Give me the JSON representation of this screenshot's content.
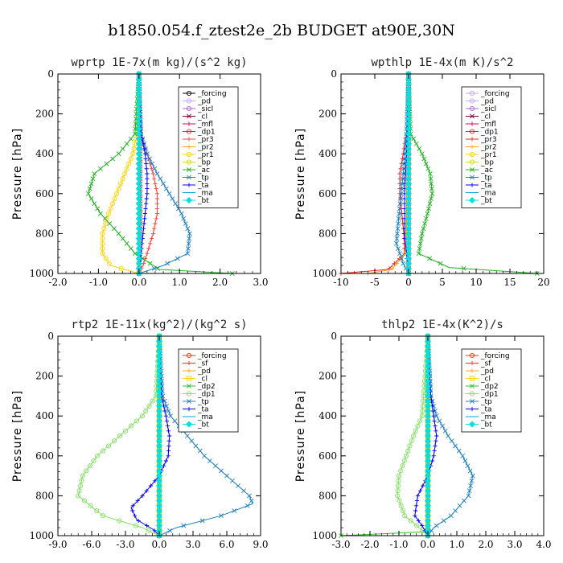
{
  "figure_title": "b1850.054.f_ztest2e_2b  BUDGET at90E,30N",
  "colors": {
    "forcing": "#000000",
    "pd": "#c8a0ff",
    "sicl": "#b060d0",
    "cl": "#800040",
    "mfl": "#d4006a",
    "dp1": "#ff2020",
    "pr3": "#ff4040",
    "pr2": "#ffa020",
    "pr1": "#ffd000",
    "bp": "#d0e000",
    "ac": "#20b020",
    "tp": "#2080c0",
    "ta": "#0000ff",
    "ma": "#00a0e0",
    "bt": "#00e0e0",
    "sf": "#ff3000",
    "dp2": "#30c030",
    "dp1g": "#80e060"
  },
  "chart_data": [
    {
      "type": "line",
      "title": "wprtp  1E-7x(m kg)/(s^2 kg)",
      "ylabel": "Pressure [hPa]",
      "xlim": [
        -2.0,
        3.0
      ],
      "ylim": [
        1000,
        0
      ],
      "xticks": [
        "-2.0",
        "-1.0",
        "0.0",
        "1.0",
        "2.0",
        "3.0"
      ],
      "xtick_values": [
        -2,
        -1,
        0,
        1,
        2,
        3
      ],
      "yticks": [
        "0",
        "200",
        "400",
        "600",
        "800",
        "1000"
      ],
      "ytick_values": [
        0,
        200,
        400,
        600,
        800,
        1000
      ],
      "legend": "top-right",
      "series": [
        {
          "name": "_forcing",
          "color": "#000000",
          "marker": "o",
          "p": [
            0,
            1000
          ],
          "x": [
            0,
            0
          ]
        },
        {
          "name": "_pd",
          "color": "#c8a0ff",
          "marker": "o",
          "p": [
            0,
            1000
          ],
          "x": [
            0,
            0
          ]
        },
        {
          "name": "_sicl",
          "color": "#b060d0",
          "marker": "o",
          "p": [
            0,
            1000
          ],
          "x": [
            0,
            0
          ]
        },
        {
          "name": "_cl",
          "color": "#800040",
          "marker": "x",
          "p": [
            0,
            300,
            500,
            700,
            900,
            1000
          ],
          "x": [
            0,
            0.02,
            0.03,
            0.03,
            0.02,
            0
          ]
        },
        {
          "name": "_mfl",
          "color": "#d4006a",
          "marker": "+",
          "p": [
            0,
            1000
          ],
          "x": [
            0,
            0
          ]
        },
        {
          "name": "_dp1",
          "color": "#ff2020",
          "marker": "o",
          "p": [
            0,
            1000
          ],
          "x": [
            0,
            0
          ]
        },
        {
          "name": "_pr3",
          "color": "#ff4040",
          "marker": "+",
          "p": [
            0,
            300,
            400,
            500,
            600,
            700,
            800,
            900,
            960,
            1000
          ],
          "x": [
            0,
            0.05,
            0.2,
            0.35,
            0.45,
            0.45,
            0.35,
            0.2,
            0.1,
            0
          ]
        },
        {
          "name": "_pr2",
          "color": "#ffa020",
          "marker": "+",
          "p": [
            0,
            1000
          ],
          "x": [
            0,
            0
          ]
        },
        {
          "name": "_pr1",
          "color": "#ffd000",
          "marker": "o",
          "p": [
            0,
            300,
            400,
            500,
            600,
            700,
            800,
            900,
            960,
            1000
          ],
          "x": [
            0,
            -0.05,
            -0.15,
            -0.35,
            -0.55,
            -0.75,
            -0.9,
            -0.9,
            -0.7,
            0
          ]
        },
        {
          "name": "_bp",
          "color": "#d0e000",
          "marker": "o",
          "p": [
            0,
            1000
          ],
          "x": [
            0,
            0
          ]
        },
        {
          "name": "_ac",
          "color": "#20b020",
          "marker": "x",
          "p": [
            0,
            300,
            400,
            500,
            600,
            700,
            800,
            900,
            980,
            1000
          ],
          "x": [
            0,
            -0.1,
            -0.5,
            -1.1,
            -1.25,
            -0.95,
            -0.5,
            -0.1,
            0.5,
            2.3
          ]
        },
        {
          "name": "_tp",
          "color": "#2080c0",
          "marker": "x",
          "p": [
            0,
            300,
            400,
            500,
            600,
            700,
            800,
            900,
            960,
            1000
          ],
          "x": [
            0,
            0.05,
            0.2,
            0.45,
            0.75,
            1.05,
            1.25,
            1.2,
            0.6,
            0
          ]
        },
        {
          "name": "_ta",
          "color": "#0000ff",
          "marker": "+",
          "p": [
            0,
            300,
            400,
            500,
            600,
            700,
            800,
            900,
            1000
          ],
          "x": [
            0,
            0.05,
            0.15,
            0.2,
            0.2,
            0.15,
            0.1,
            0.05,
            0
          ]
        },
        {
          "name": "_ma",
          "color": "#00a0e0",
          "marker": "-",
          "p": [
            0,
            1000
          ],
          "x": [
            0,
            0
          ]
        },
        {
          "name": "_bt",
          "color": "#00e0e0",
          "marker": "d",
          "p": [
            0,
            1000
          ],
          "x": [
            0,
            0
          ]
        }
      ]
    },
    {
      "type": "line",
      "title": "wpthlp  1E-4x(m K)/s^2",
      "ylabel": "Pressure [hPa]",
      "xlim": [
        -10,
        20
      ],
      "ylim": [
        1000,
        0
      ],
      "xticks": [
        "-10",
        "-5",
        "0",
        "5",
        "10",
        "15",
        "20"
      ],
      "xtick_values": [
        -10,
        -5,
        0,
        5,
        10,
        15,
        20
      ],
      "yticks": [
        "0",
        "200",
        "400",
        "600",
        "800",
        "1000"
      ],
      "ytick_values": [
        0,
        200,
        400,
        600,
        800,
        1000
      ],
      "legend": "top-right",
      "series": [
        {
          "name": "_forcing",
          "color": "#c8a0ff",
          "marker": "o",
          "p": [
            0,
            1000
          ],
          "x": [
            0,
            0
          ]
        },
        {
          "name": "_pd",
          "color": "#c8a0ff",
          "marker": "o",
          "p": [
            0,
            1000
          ],
          "x": [
            0,
            0
          ]
        },
        {
          "name": "_sicl",
          "color": "#b060d0",
          "marker": "o",
          "p": [
            0,
            1000
          ],
          "x": [
            0,
            0
          ]
        },
        {
          "name": "_cl",
          "color": "#800040",
          "marker": "x",
          "p": [
            0,
            1000
          ],
          "x": [
            0,
            0
          ]
        },
        {
          "name": "_mfl",
          "color": "#d4006a",
          "marker": "+",
          "p": [
            0,
            1000
          ],
          "x": [
            0,
            0
          ]
        },
        {
          "name": "_dp1",
          "color": "#ff2020",
          "marker": "o",
          "p": [
            0,
            1000
          ],
          "x": [
            0,
            0
          ]
        },
        {
          "name": "_pr3",
          "color": "#ff2020",
          "marker": "+",
          "p": [
            0,
            300,
            400,
            500,
            600,
            700,
            800,
            900,
            980,
            1000
          ],
          "x": [
            0,
            -0.3,
            -0.8,
            -1.3,
            -1.3,
            -1.0,
            -0.7,
            -0.6,
            -3.0,
            -10
          ]
        },
        {
          "name": "_pr2",
          "color": "#ffa020",
          "marker": "+",
          "p": [
            0,
            900,
            980,
            1000
          ],
          "x": [
            0,
            -0.5,
            -2.5,
            -6
          ]
        },
        {
          "name": "_pr1",
          "color": "#ffd000",
          "marker": "o",
          "p": [
            0,
            1000
          ],
          "x": [
            0,
            0
          ]
        },
        {
          "name": "_bp",
          "color": "#d0e000",
          "marker": "o",
          "p": [
            0,
            1000
          ],
          "x": [
            0,
            0
          ]
        },
        {
          "name": "_ac",
          "color": "#20b020",
          "marker": "x",
          "p": [
            0,
            300,
            400,
            500,
            600,
            700,
            800,
            900,
            970,
            1000
          ],
          "x": [
            0,
            0.3,
            2.0,
            3.2,
            3.5,
            2.8,
            2.0,
            1.5,
            6.0,
            19
          ]
        },
        {
          "name": "_tp",
          "color": "#2080c0",
          "marker": "x",
          "p": [
            0,
            300,
            500,
            700,
            850,
            950,
            1000
          ],
          "x": [
            0,
            -0.3,
            -0.8,
            -1.4,
            -1.8,
            -0.8,
            0
          ]
        },
        {
          "name": "_ta",
          "color": "#0000ff",
          "marker": "+",
          "p": [
            0,
            400,
            600,
            800,
            1000
          ],
          "x": [
            0,
            -0.3,
            -0.6,
            -0.6,
            0
          ]
        },
        {
          "name": "_ma",
          "color": "#00a0e0",
          "marker": "-",
          "p": [
            0,
            1000
          ],
          "x": [
            0,
            0
          ]
        },
        {
          "name": "_bt",
          "color": "#00e0e0",
          "marker": "d",
          "p": [
            0,
            1000
          ],
          "x": [
            0,
            0
          ]
        }
      ]
    },
    {
      "type": "line",
      "title": "rtp2  1E-11x(kg^2)/(kg^2 s)",
      "ylabel": "Pressure [hPa]",
      "xlim": [
        -9.0,
        9.0
      ],
      "ylim": [
        1000,
        0
      ],
      "xticks": [
        "-9.0",
        "-6.0",
        "-3.0",
        "0.0",
        "3.0",
        "6.0",
        "9.0"
      ],
      "xtick_values": [
        -9,
        -6,
        -3,
        0,
        3,
        6,
        9
      ],
      "yticks": [
        "0",
        "200",
        "400",
        "600",
        "800",
        "1000"
      ],
      "ytick_values": [
        0,
        200,
        400,
        600,
        800,
        1000
      ],
      "legend": "top-right",
      "series": [
        {
          "name": "_forcing",
          "color": "#ff3000",
          "marker": "o",
          "p": [
            0,
            1000
          ],
          "x": [
            0,
            0
          ]
        },
        {
          "name": "_sf",
          "color": "#ff3000",
          "marker": "+",
          "p": [
            0,
            1000
          ],
          "x": [
            0,
            0
          ]
        },
        {
          "name": "_pd",
          "color": "#ffa020",
          "marker": "+",
          "p": [
            0,
            1000
          ],
          "x": [
            0,
            0
          ]
        },
        {
          "name": "_cl",
          "color": "#ffd000",
          "marker": "s",
          "p": [
            0,
            1000
          ],
          "x": [
            0,
            0
          ]
        },
        {
          "name": "_dp2",
          "color": "#30c030",
          "marker": "x",
          "p": [
            0,
            1000
          ],
          "x": [
            0,
            0
          ]
        },
        {
          "name": "_dp1",
          "color": "#80e060",
          "marker": "o",
          "p": [
            0,
            300,
            400,
            500,
            600,
            700,
            800,
            900,
            960,
            1000
          ],
          "x": [
            0,
            -0.3,
            -1.5,
            -3.5,
            -5.5,
            -6.8,
            -7.2,
            -5.0,
            -1.5,
            0
          ]
        },
        {
          "name": "_tp",
          "color": "#2080c0",
          "marker": "x",
          "p": [
            0,
            300,
            400,
            500,
            600,
            700,
            800,
            840,
            900,
            960,
            1000
          ],
          "x": [
            0,
            0.3,
            1.0,
            2.5,
            4.0,
            6.0,
            8.0,
            8.3,
            5.5,
            1.5,
            0
          ]
        },
        {
          "name": "_ta",
          "color": "#0000ff",
          "marker": "+",
          "p": [
            0,
            300,
            400,
            500,
            600,
            700,
            800,
            860,
            920,
            970,
            1000
          ],
          "x": [
            0,
            0.2,
            0.6,
            0.9,
            0.8,
            0.0,
            -1.5,
            -2.5,
            -2.0,
            -0.5,
            0
          ]
        },
        {
          "name": "_ma",
          "color": "#00a0e0",
          "marker": "-",
          "p": [
            0,
            1000
          ],
          "x": [
            0,
            0
          ]
        },
        {
          "name": "_bt",
          "color": "#00e0e0",
          "marker": "d",
          "p": [
            0,
            1000
          ],
          "x": [
            0,
            0
          ]
        }
      ]
    },
    {
      "type": "line",
      "title": "thlp2  1E-4x(K^2)/s",
      "ylabel": "Pressure [hPa]",
      "xlim": [
        -3.0,
        4.0
      ],
      "ylim": [
        1000,
        0
      ],
      "xticks": [
        "-3.0",
        "-2.0",
        "-1.0",
        "0.0",
        "1.0",
        "2.0",
        "3.0",
        "4.0"
      ],
      "xtick_values": [
        -3,
        -2,
        -1,
        0,
        1,
        2,
        3,
        4
      ],
      "yticks": [
        "0",
        "200",
        "400",
        "600",
        "800",
        "1000"
      ],
      "ytick_values": [
        0,
        200,
        400,
        600,
        800,
        1000
      ],
      "legend": "top-right",
      "series": [
        {
          "name": "_forcing",
          "color": "#ff3000",
          "marker": "o",
          "p": [
            0,
            1000
          ],
          "x": [
            0,
            0
          ]
        },
        {
          "name": "_sf",
          "color": "#ff3000",
          "marker": "+",
          "p": [
            0,
            1000
          ],
          "x": [
            0,
            0
          ]
        },
        {
          "name": "_pd",
          "color": "#ffa020",
          "marker": "+",
          "p": [
            0,
            1000
          ],
          "x": [
            0,
            0
          ]
        },
        {
          "name": "_cl",
          "color": "#ffd000",
          "marker": "s",
          "p": [
            0,
            1000
          ],
          "x": [
            0,
            0
          ]
        },
        {
          "name": "_dp2",
          "color": "#30c030",
          "marker": "x",
          "p": [
            0,
            980,
            1000
          ],
          "x": [
            0,
            0,
            -3.0
          ]
        },
        {
          "name": "_dp1",
          "color": "#80e060",
          "marker": "o",
          "p": [
            0,
            400,
            500,
            600,
            700,
            800,
            900,
            960,
            1000
          ],
          "x": [
            0,
            -0.2,
            -0.5,
            -0.75,
            -1.0,
            -1.05,
            -0.8,
            -0.3,
            0
          ]
        },
        {
          "name": "_tp",
          "color": "#2080c0",
          "marker": "x",
          "p": [
            0,
            300,
            400,
            500,
            600,
            700,
            800,
            900,
            960,
            1000
          ],
          "x": [
            0,
            0.1,
            0.3,
            0.7,
            1.2,
            1.55,
            1.4,
            0.8,
            0.2,
            0
          ]
        },
        {
          "name": "_ta",
          "color": "#0000ff",
          "marker": "+",
          "p": [
            0,
            300,
            400,
            500,
            600,
            700,
            800,
            900,
            950,
            1000
          ],
          "x": [
            0,
            0.1,
            0.2,
            0.3,
            0.2,
            0.0,
            -0.35,
            -0.45,
            -0.2,
            0
          ]
        },
        {
          "name": "_ma",
          "color": "#00a0e0",
          "marker": "-",
          "p": [
            0,
            1000
          ],
          "x": [
            0,
            0
          ]
        },
        {
          "name": "_bt",
          "color": "#00e0e0",
          "marker": "d",
          "p": [
            0,
            1000
          ],
          "x": [
            0,
            0
          ]
        }
      ]
    }
  ]
}
